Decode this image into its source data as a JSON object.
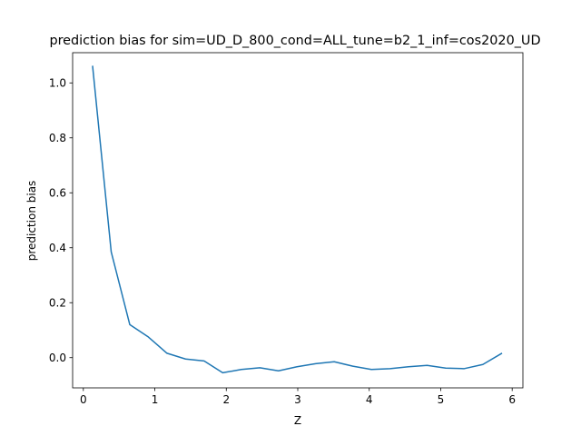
{
  "chart_data": {
    "type": "line",
    "title": "prediction bias for sim=UD_D_800_cond=ALL_tune=b2_1_inf=cos2020_UD",
    "xlabel": "Z",
    "ylabel": "prediction bias",
    "xlim": [
      -0.15,
      6.15
    ],
    "ylim": [
      -0.11,
      1.11
    ],
    "xticks": [
      0,
      1,
      2,
      3,
      4,
      5,
      6
    ],
    "xtick_labels": [
      "0",
      "1",
      "2",
      "3",
      "4",
      "5",
      "6"
    ],
    "yticks": [
      0.0,
      0.2,
      0.4,
      0.6,
      0.8,
      1.0
    ],
    "ytick_labels": [
      "0.0",
      "0.2",
      "0.4",
      "0.6",
      "0.8",
      "1.0"
    ],
    "grid": false,
    "series": [
      {
        "color": "#1f77b4",
        "x": [
          0.13,
          0.39,
          0.65,
          0.91,
          1.17,
          1.43,
          1.69,
          1.95,
          2.21,
          2.47,
          2.73,
          2.99,
          3.25,
          3.51,
          3.77,
          4.03,
          4.29,
          4.55,
          4.81,
          5.07,
          5.33,
          5.59,
          5.85
        ],
        "y": [
          1.06,
          0.385,
          0.12,
          0.075,
          0.016,
          -0.005,
          -0.012,
          -0.055,
          -0.043,
          -0.037,
          -0.048,
          -0.033,
          -0.022,
          -0.015,
          -0.031,
          -0.043,
          -0.04,
          -0.033,
          -0.028,
          -0.038,
          -0.04,
          -0.025,
          0.015
        ]
      }
    ]
  }
}
